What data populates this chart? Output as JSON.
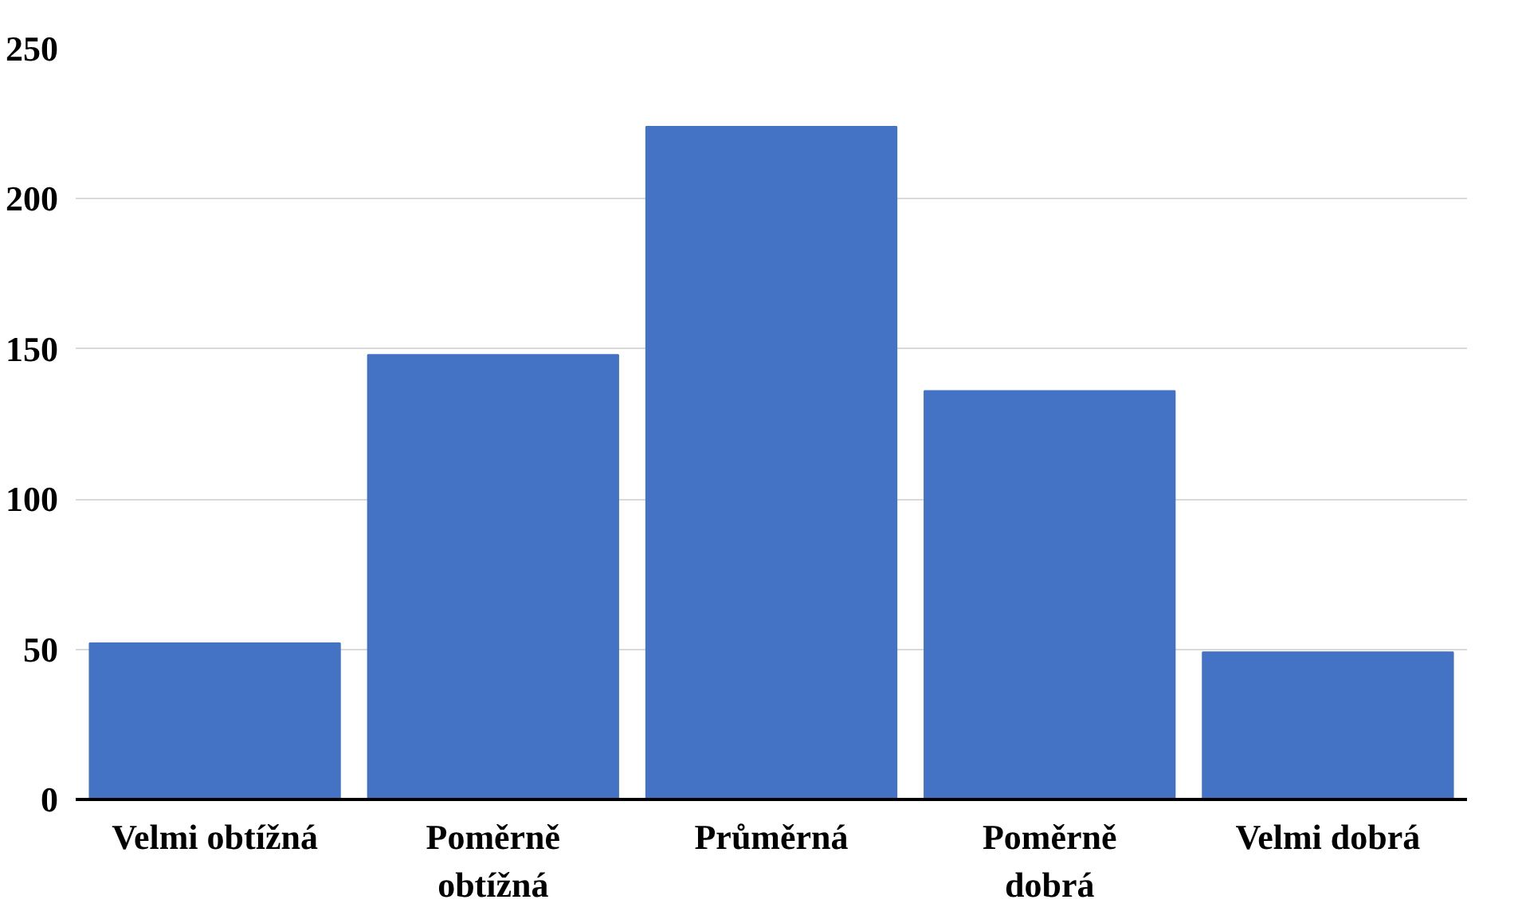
{
  "chart_data": {
    "type": "bar",
    "categories": [
      "Velmi obtížná",
      "Poměrně\nobtížná",
      "Průměrná",
      "Poměrně\ndobrá",
      "Velmi dobrá"
    ],
    "values": [
      52,
      148,
      224,
      136,
      49
    ],
    "color": "#4472c4",
    "ylim": [
      0,
      250
    ],
    "yticks": [
      0,
      50,
      100,
      150,
      200,
      250
    ],
    "grid": "y"
  }
}
